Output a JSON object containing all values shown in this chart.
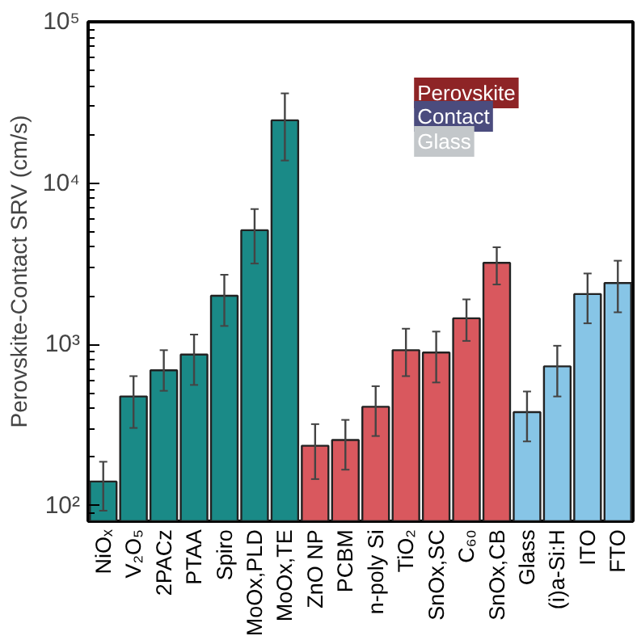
{
  "chart_data": {
    "type": "bar",
    "ylabel": "Perovskite-Contact SRV (cm/s)",
    "categories": [
      "NiOₓ",
      "V₂O₅",
      "2PACz",
      "PTAA",
      "Spiro",
      "MoOx,PLD",
      "MoOx,TE",
      "ZnO NP",
      "PCBM",
      "n-poly Si",
      "TiO₂",
      "SnOx,SC",
      "C₆₀",
      "SnOx,CB",
      "Glass",
      "(i)a-Si:H",
      "ITO",
      "FTO"
    ],
    "values": [
      141,
      475,
      690,
      865,
      2000,
      5100,
      24500,
      235,
      255,
      410,
      920,
      890,
      1450,
      3200,
      380,
      730,
      2050,
      2400
    ],
    "errors": [
      [
        93,
        187
      ],
      [
        303,
        635
      ],
      [
        515,
        920
      ],
      [
        560,
        1150
      ],
      [
        1300,
        2700
      ],
      [
        3170,
        6900
      ],
      [
        13800,
        36000
      ],
      [
        146,
        320
      ],
      [
        167,
        340
      ],
      [
        270,
        550
      ],
      [
        635,
        1250
      ],
      [
        580,
        1200
      ],
      [
        1050,
        1900
      ],
      [
        2350,
        4000
      ],
      [
        250,
        510
      ],
      [
        475,
        980
      ],
      [
        1350,
        2750
      ],
      [
        1580,
        3300
      ]
    ],
    "colors": [
      "#1a8a87",
      "#1a8a87",
      "#1a8a87",
      "#1a8a87",
      "#1a8a87",
      "#1a8a87",
      "#1a8a87",
      "#d9585e",
      "#d9585e",
      "#d9585e",
      "#d9585e",
      "#d9585e",
      "#d9585e",
      "#d9585e",
      "#87c5e6",
      "#87c5e6",
      "#87c5e6",
      "#87c5e6"
    ],
    "log": true,
    "ylim": [
      80,
      100000
    ],
    "yticks": [
      {
        "value": 100,
        "label": "10²"
      },
      {
        "value": 1000,
        "label": "10³"
      },
      {
        "value": 10000,
        "label": "10⁴"
      },
      {
        "value": 100000,
        "label": "10⁵"
      }
    ],
    "annotations": [
      "Perovskite",
      "Contact",
      "Glass"
    ],
    "grid": false
  }
}
